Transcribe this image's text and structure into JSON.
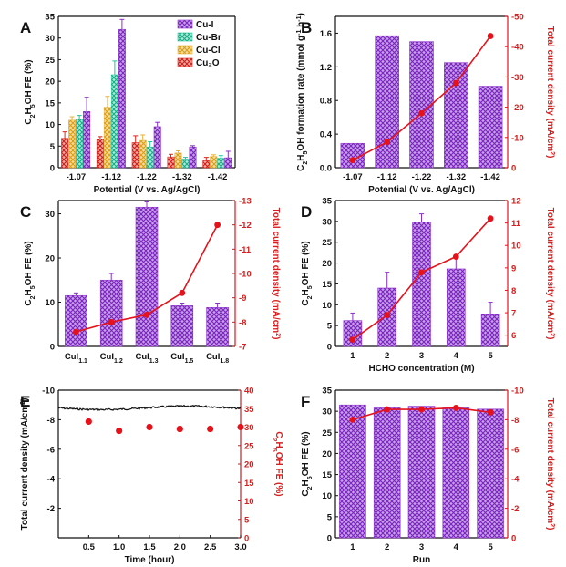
{
  "colors": {
    "purple": "#8b2fc9",
    "green": "#22c39a",
    "yellow": "#eab236",
    "red": "#e0241c",
    "curve": "#e4131b",
    "axis": "#111111"
  },
  "chart_data": [
    {
      "id": "A",
      "panel_label": "A",
      "type": "bar",
      "xlabel": "Potential (V vs. Ag/AgCl)",
      "ylabel": "C2H5OH FE (%)",
      "ylim": [
        0,
        35
      ],
      "yticks": [
        0,
        5,
        10,
        15,
        20,
        25,
        30,
        35
      ],
      "categories": [
        "-1.07",
        "-1.12",
        "-1.22",
        "-1.32",
        "-1.42"
      ],
      "series": [
        {
          "name": "Cu₂O",
          "color": "#e0241c",
          "values": [
            6.8,
            6.6,
            5.8,
            2.5,
            1.6
          ],
          "errors": [
            1.5,
            0.6,
            1.6,
            0.6,
            0.8
          ]
        },
        {
          "name": "Cu-Cl",
          "color": "#eab236",
          "values": [
            11.0,
            14.0,
            6.3,
            3.4,
            2.6
          ],
          "errors": [
            0.8,
            2.5,
            1.3,
            0.5,
            0.4
          ]
        },
        {
          "name": "Cu-Br",
          "color": "#22c39a",
          "values": [
            11.2,
            21.5,
            4.8,
            2.0,
            2.2
          ],
          "errors": [
            0.9,
            3.2,
            1.2,
            0.4,
            0.6
          ]
        },
        {
          "name": "Cu-I",
          "color": "#8b2fc9",
          "values": [
            13.0,
            32.0,
            9.5,
            4.8,
            2.3
          ],
          "errors": [
            3.3,
            2.3,
            1.0,
            0.3,
            1.5
          ]
        }
      ],
      "legend": [
        "Cu-I",
        "Cu-Br",
        "Cu-Cl",
        "Cu₂O"
      ]
    },
    {
      "id": "B",
      "panel_label": "B",
      "type": "bar",
      "xlabel": "Potential (V vs. Ag/AgCl)",
      "ylabel": "C2H5OH formation rate (mmol g-1 h-1)",
      "ylim": [
        0,
        1.8
      ],
      "yticks": [
        0.0,
        0.4,
        0.8,
        1.2,
        1.6
      ],
      "categories": [
        "-1.07",
        "-1.12",
        "-1.22",
        "-1.32",
        "-1.42"
      ],
      "values": [
        0.29,
        1.57,
        1.5,
        1.25,
        0.97
      ],
      "secondary": {
        "type": "line",
        "ylabel": "Total current density (mA/cm2)",
        "ylim": [
          0,
          -50
        ],
        "yticks": [
          0,
          -10,
          -20,
          -30,
          -40,
          -50
        ],
        "values": [
          -2.5,
          -8.5,
          -18.0,
          -28.0,
          -43.5
        ]
      }
    },
    {
      "id": "C",
      "panel_label": "C",
      "type": "bar",
      "xlabel": "",
      "ylabel": "C2H5OH FE (%)",
      "ylim": [
        0,
        33
      ],
      "yticks": [
        0,
        10,
        20,
        30
      ],
      "categories": [
        "CuI1.1",
        "CuI1.2",
        "CuI1.3",
        "CuI1.5",
        "CuI1.8"
      ],
      "cat_base": "CuI",
      "cat_subs": [
        "1.1",
        "1.2",
        "1.3",
        "1.5",
        "1.8"
      ],
      "values": [
        11.5,
        15.0,
        31.5,
        9.2,
        8.8
      ],
      "errors": [
        0.6,
        1.5,
        1.2,
        0.6,
        1.0
      ],
      "secondary": {
        "type": "line",
        "ylabel": "Total current density (mA/cm2)",
        "ylim": [
          -7,
          -13
        ],
        "yticks": [
          -7,
          -8,
          -9,
          -10,
          -11,
          -12,
          -13
        ],
        "values": [
          -7.6,
          -8.0,
          -8.3,
          -9.2,
          -12.0
        ]
      }
    },
    {
      "id": "D",
      "panel_label": "D",
      "type": "bar",
      "xlabel": "HCHO concentration (M)",
      "ylabel": "C2H5OH FE (%)",
      "ylim": [
        0,
        35
      ],
      "yticks": [
        0,
        5,
        10,
        15,
        20,
        25,
        30,
        35
      ],
      "categories": [
        "1",
        "2",
        "3",
        "4",
        "5"
      ],
      "values": [
        6.2,
        14.0,
        29.8,
        18.6,
        7.6
      ],
      "errors": [
        1.8,
        3.8,
        2.0,
        2.8,
        3.0
      ],
      "secondary": {
        "type": "line",
        "ylabel": "Total current density (mA/cm2)",
        "ylim": [
          5.5,
          12
        ],
        "yticks": [
          6,
          7,
          8,
          9,
          10,
          11,
          12
        ],
        "values": [
          5.8,
          6.9,
          8.8,
          9.5,
          11.2
        ]
      }
    },
    {
      "id": "E",
      "panel_label": "E",
      "type": "scatter",
      "xlabel": "Time (hour)",
      "ylabel": "Total current density (mA/cm2)",
      "xlim": [
        0,
        3
      ],
      "xticks": [
        0.5,
        1.0,
        1.5,
        2.0,
        2.5,
        3.0
      ],
      "ylim": [
        -10,
        0
      ],
      "yticks": [
        -2,
        -4,
        -6,
        -8,
        -10
      ],
      "current_level": -8.8,
      "secondary": {
        "type": "scatter",
        "ylabel": "C2H5OH FE (%)",
        "ylim": [
          0,
          40
        ],
        "yticks": [
          0,
          5,
          10,
          15,
          20,
          25,
          30,
          35,
          40
        ],
        "x": [
          0.5,
          1.0,
          1.5,
          2.0,
          2.5,
          3.0
        ],
        "values": [
          31.5,
          29.0,
          30.0,
          29.5,
          29.5,
          30.0
        ]
      }
    },
    {
      "id": "F",
      "panel_label": "F",
      "type": "bar",
      "xlabel": "Run",
      "ylabel": "C2H5OH FE (%)",
      "ylim": [
        0,
        35
      ],
      "yticks": [
        0,
        5,
        10,
        15,
        20,
        25,
        30,
        35
      ],
      "categories": [
        "1",
        "2",
        "3",
        "4",
        "5"
      ],
      "values": [
        31.5,
        30.8,
        31.2,
        30.8,
        30.5
      ],
      "secondary": {
        "type": "line",
        "ylabel": "Total current density (mA/cm2)",
        "ylim": [
          0,
          -10
        ],
        "yticks": [
          0,
          -2,
          -4,
          -6,
          -8,
          -10
        ],
        "values": [
          -8.0,
          -8.7,
          -8.7,
          -8.8,
          -8.5
        ]
      }
    }
  ]
}
